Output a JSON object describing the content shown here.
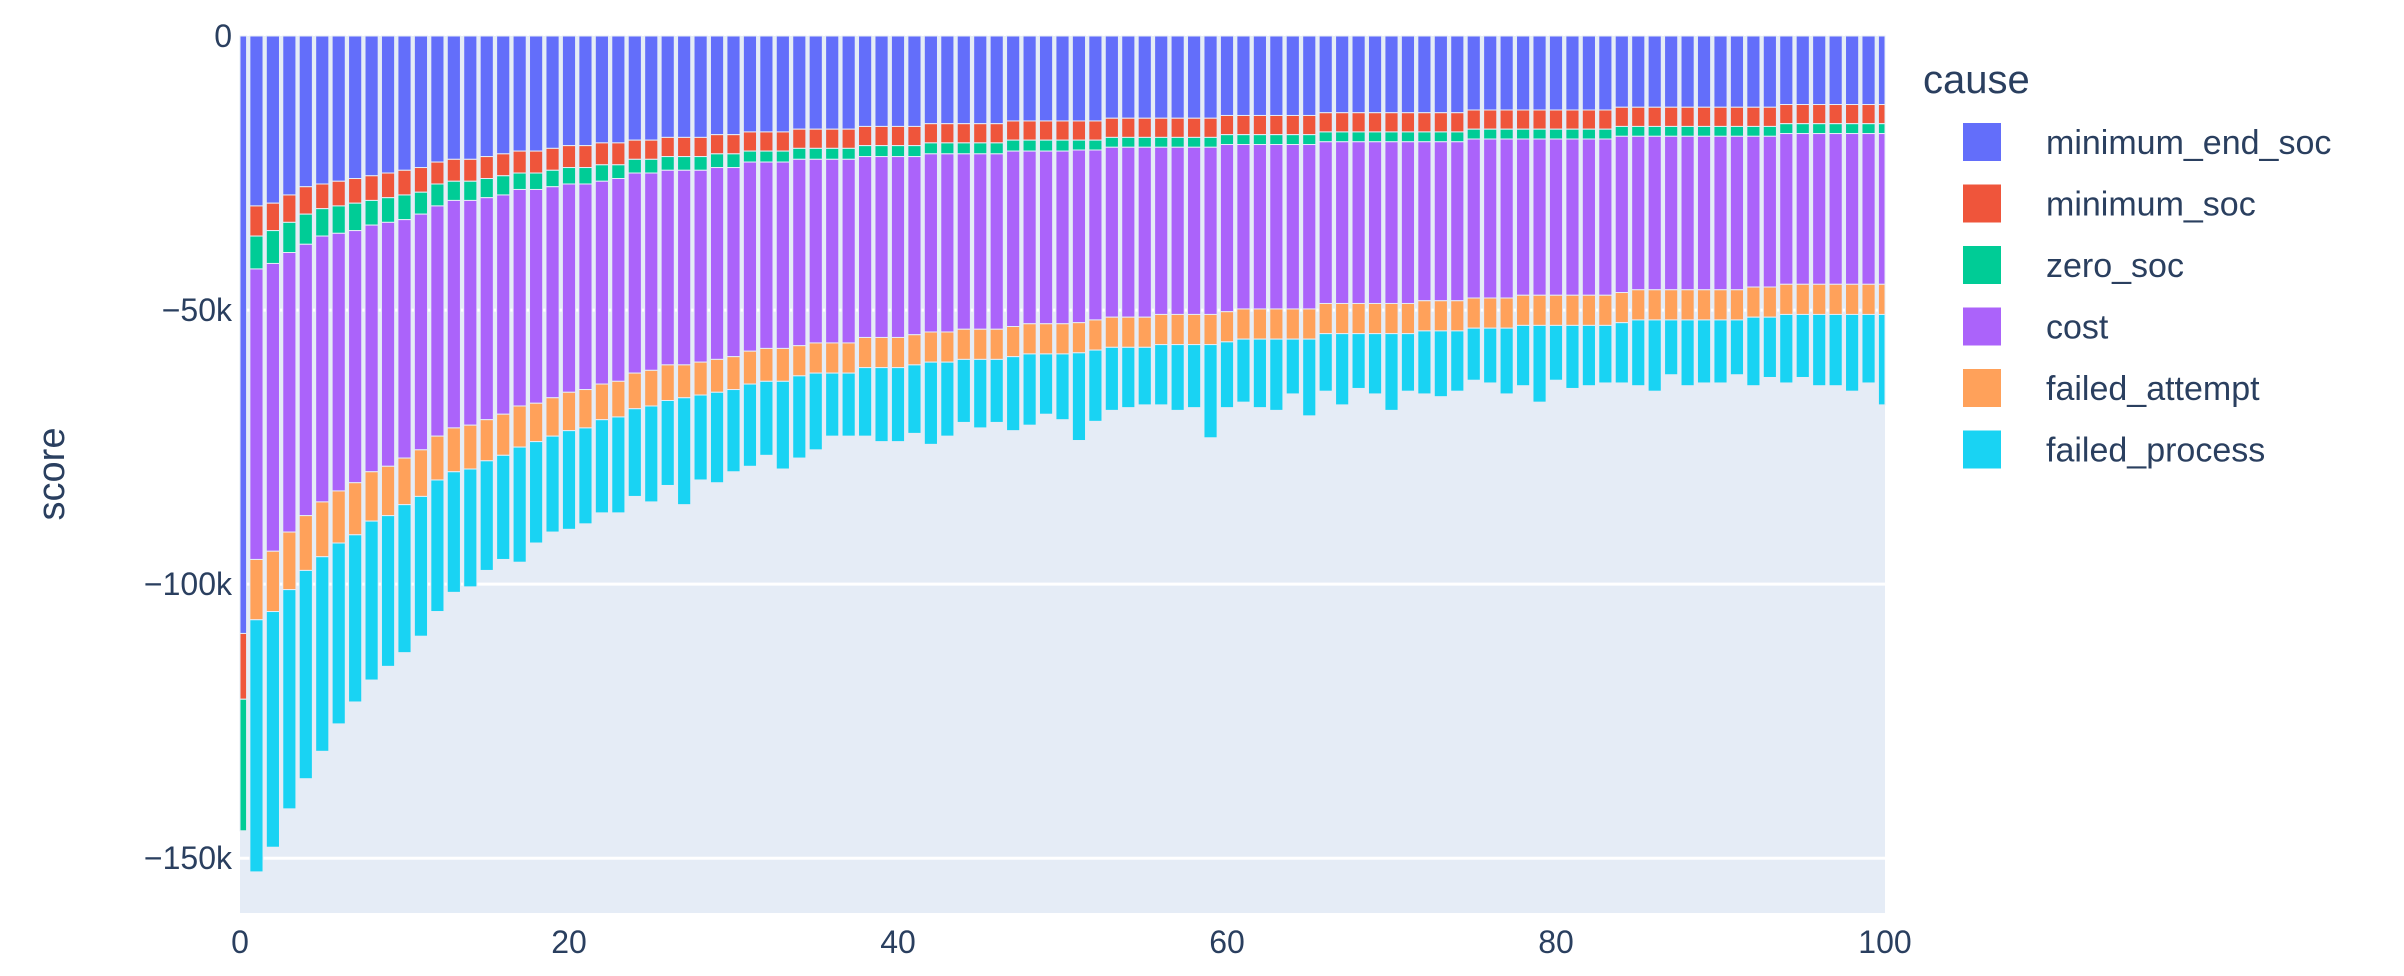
{
  "chart_data": {
    "type": "bar",
    "barmode": "stack",
    "ylabel": "score",
    "xlabel": "",
    "xlim": [
      0,
      100
    ],
    "ylim": [
      -160000,
      0
    ],
    "x_ticks": [
      0,
      20,
      40,
      60,
      80,
      100
    ],
    "x_tick_labels": [
      "0",
      "20",
      "40",
      "60",
      "80",
      "100"
    ],
    "y_ticks": [
      0,
      -50000,
      -100000,
      -150000
    ],
    "y_tick_labels": [
      "0",
      "−50k",
      "−100k",
      "−150k"
    ],
    "grid": true,
    "legend": {
      "title": "cause",
      "placement": "right"
    },
    "series": [
      {
        "name": "minimum_end_soc",
        "color": "#636efa",
        "values": [
          -109000,
          -31000,
          -30500,
          -29000,
          -27500,
          -27000,
          -26500,
          -26000,
          -25500,
          -25000,
          -24500,
          -24000,
          -23000,
          -22500,
          -22500,
          -22000,
          -21500,
          -21000,
          -21000,
          -20500,
          -20000,
          -20000,
          -19500,
          -19500,
          -19000,
          -19000,
          -18500,
          -18500,
          -18500,
          -18000,
          -18000,
          -17500,
          -17500,
          -17500,
          -17000,
          -17000,
          -17000,
          -17000,
          -16500,
          -16500,
          -16500,
          -16500,
          -16000,
          -16000,
          -16000,
          -16000,
          -16000,
          -15500,
          -15500,
          -15500,
          -15500,
          -15500,
          -15500,
          -15000,
          -15000,
          -15000,
          -15000,
          -15000,
          -15000,
          -15000,
          -14500,
          -14500,
          -14500,
          -14500,
          -14500,
          -14500,
          -14000,
          -14000,
          -14000,
          -14000,
          -14000,
          -14000,
          -14000,
          -14000,
          -14000,
          -13500,
          -13500,
          -13500,
          -13500,
          -13500,
          -13500,
          -13500,
          -13500,
          -13500,
          -13000,
          -13000,
          -13000,
          -13000,
          -13000,
          -13000,
          -13000,
          -13000,
          -13000,
          -13000,
          -12500,
          -12500,
          -12500,
          -12500,
          -12500,
          -12500,
          -12500
        ]
      },
      {
        "name": "minimum_soc",
        "color": "#ef553b",
        "values": [
          -12000,
          -5500,
          -5000,
          -5000,
          -5000,
          -4500,
          -4500,
          -4500,
          -4500,
          -4500,
          -4500,
          -4500,
          -4000,
          -4000,
          -4000,
          -4000,
          -4000,
          -4000,
          -4000,
          -4000,
          -4000,
          -4000,
          -4000,
          -4000,
          -3500,
          -3500,
          -3500,
          -3500,
          -3500,
          -3500,
          -3500,
          -3500,
          -3500,
          -3500,
          -3500,
          -3500,
          -3500,
          -3500,
          -3500,
          -3500,
          -3500,
          -3500,
          -3500,
          -3500,
          -3500,
          -3500,
          -3500,
          -3500,
          -3500,
          -3500,
          -3500,
          -3500,
          -3500,
          -3500,
          -3500,
          -3500,
          -3500,
          -3500,
          -3500,
          -3500,
          -3500,
          -3500,
          -3500,
          -3500,
          -3500,
          -3500,
          -3500,
          -3500,
          -3500,
          -3500,
          -3500,
          -3500,
          -3500,
          -3500,
          -3500,
          -3500,
          -3500,
          -3500,
          -3500,
          -3500,
          -3500,
          -3500,
          -3500,
          -3500,
          -3500,
          -3500,
          -3500,
          -3500,
          -3500,
          -3500,
          -3500,
          -3500,
          -3500,
          -3500,
          -3500,
          -3500,
          -3500,
          -3500,
          -3500,
          -3500,
          -3500
        ]
      },
      {
        "name": "zero_soc",
        "color": "#00cc96",
        "values": [
          -24000,
          -6000,
          -6000,
          -5500,
          -5500,
          -5000,
          -5000,
          -5000,
          -4500,
          -4500,
          -4500,
          -4000,
          -4000,
          -3500,
          -3500,
          -3500,
          -3500,
          -3000,
          -3000,
          -3000,
          -3000,
          -3000,
          -3000,
          -2500,
          -2500,
          -2500,
          -2500,
          -2500,
          -2500,
          -2500,
          -2500,
          -2000,
          -2000,
          -2000,
          -2000,
          -2000,
          -2000,
          -2000,
          -2000,
          -2000,
          -2000,
          -2000,
          -2000,
          -2000,
          -2000,
          -2000,
          -2000,
          -2000,
          -2000,
          -2000,
          -2000,
          -1800,
          -1800,
          -1800,
          -1800,
          -1800,
          -1800,
          -1800,
          -1800,
          -1800,
          -1800,
          -1800,
          -1800,
          -1800,
          -1800,
          -1800,
          -1800,
          -1800,
          -1800,
          -1800,
          -1800,
          -1800,
          -1800,
          -1800,
          -1800,
          -1800,
          -1800,
          -1800,
          -1800,
          -1800,
          -1800,
          -1800,
          -1800,
          -1800,
          -1800,
          -1800,
          -1800,
          -1800,
          -1800,
          -1800,
          -1800,
          -1800,
          -1800,
          -1800,
          -1800,
          -1800,
          -1800,
          -1800,
          -1800,
          -1800,
          -1800
        ]
      },
      {
        "name": "cost",
        "color": "#ab63fa",
        "values": [
          0,
          -53000,
          -52500,
          -51000,
          -49500,
          -48500,
          -47000,
          -46000,
          -45000,
          -44500,
          -43500,
          -43000,
          -42000,
          -41500,
          -41000,
          -40500,
          -40000,
          -39500,
          -39000,
          -38500,
          -38000,
          -37500,
          -37000,
          -37000,
          -36500,
          -36000,
          -35500,
          -35500,
          -35000,
          -35000,
          -34500,
          -34500,
          -34000,
          -34000,
          -34000,
          -33500,
          -33500,
          -33500,
          -33000,
          -33000,
          -33000,
          -32500,
          -32500,
          -32500,
          -32000,
          -32000,
          -32000,
          -32000,
          -31500,
          -31500,
          -31500,
          -31500,
          -31000,
          -31000,
          -31000,
          -31000,
          -30500,
          -30500,
          -30500,
          -30500,
          -30500,
          -30000,
          -30000,
          -30000,
          -30000,
          -30000,
          -29500,
          -29500,
          -29500,
          -29500,
          -29500,
          -29500,
          -29000,
          -29000,
          -29000,
          -29000,
          -29000,
          -29000,
          -28500,
          -28500,
          -28500,
          -28500,
          -28500,
          -28500,
          -28500,
          -28000,
          -28000,
          -28000,
          -28000,
          -28000,
          -28000,
          -28000,
          -27500,
          -27500,
          -27500,
          -27500,
          -27500,
          -27500,
          -27500,
          -27500,
          -27500
        ]
      },
      {
        "name": "failed_attempt",
        "color": "#ffa15a",
        "values": [
          0,
          -11000,
          -11000,
          -10500,
          -10000,
          -10000,
          -9500,
          -9500,
          -9000,
          -9000,
          -8500,
          -8500,
          -8000,
          -8000,
          -8000,
          -7500,
          -7500,
          -7500,
          -7000,
          -7000,
          -7000,
          -7000,
          -6500,
          -6500,
          -6500,
          -6500,
          -6500,
          -6000,
          -6000,
          -6000,
          -6000,
          -6000,
          -6000,
          -6000,
          -5500,
          -5500,
          -5500,
          -5500,
          -5500,
          -5500,
          -5500,
          -5500,
          -5500,
          -5500,
          -5500,
          -5500,
          -5500,
          -5500,
          -5500,
          -5500,
          -5500,
          -5500,
          -5500,
          -5500,
          -5500,
          -5500,
          -5500,
          -5500,
          -5500,
          -5500,
          -5500,
          -5500,
          -5500,
          -5500,
          -5500,
          -5500,
          -5500,
          -5500,
          -5500,
          -5500,
          -5500,
          -5500,
          -5500,
          -5500,
          -5500,
          -5500,
          -5500,
          -5500,
          -5500,
          -5500,
          -5500,
          -5500,
          -5500,
          -5500,
          -5500,
          -5500,
          -5500,
          -5500,
          -5500,
          -5500,
          -5500,
          -5500,
          -5500,
          -5500,
          -5500,
          -5500,
          -5500,
          -5500,
          -5500,
          -5500,
          -5500
        ]
      },
      {
        "name": "failed_process",
        "color": "#19d3f3",
        "values": [
          0,
          -46000,
          -43000,
          -40000,
          -38000,
          -35500,
          -33000,
          -30500,
          -29000,
          -27500,
          -27000,
          -25500,
          -24000,
          -22000,
          -21500,
          -20000,
          -19000,
          -21000,
          -18500,
          -17500,
          -18000,
          -17500,
          -17000,
          -17500,
          -16000,
          -17500,
          -15500,
          -19500,
          -15500,
          -16500,
          -15000,
          -15000,
          -13500,
          -16000,
          -15000,
          -14000,
          -11500,
          -11500,
          -12500,
          -13500,
          -13500,
          -12500,
          -15000,
          -13500,
          -11500,
          -12500,
          -11500,
          -13500,
          -13000,
          -11000,
          -12000,
          -16000,
          -13000,
          -11500,
          -11000,
          -10500,
          -11000,
          -12000,
          -11500,
          -17000,
          -12000,
          -11500,
          -12500,
          -13000,
          -10000,
          -14000,
          -10500,
          -13000,
          -10000,
          -11000,
          -14000,
          -10500,
          -11500,
          -12000,
          -11000,
          -9500,
          -10000,
          -12000,
          -11000,
          -14000,
          -10000,
          -11500,
          -11000,
          -10500,
          -11000,
          -12000,
          -13000,
          -10000,
          -12000,
          -11500,
          -11500,
          -10000,
          -12500,
          -11000,
          -12500,
          -11500,
          -13000,
          -13000,
          -14000,
          -12500,
          -16500
        ]
      }
    ]
  }
}
